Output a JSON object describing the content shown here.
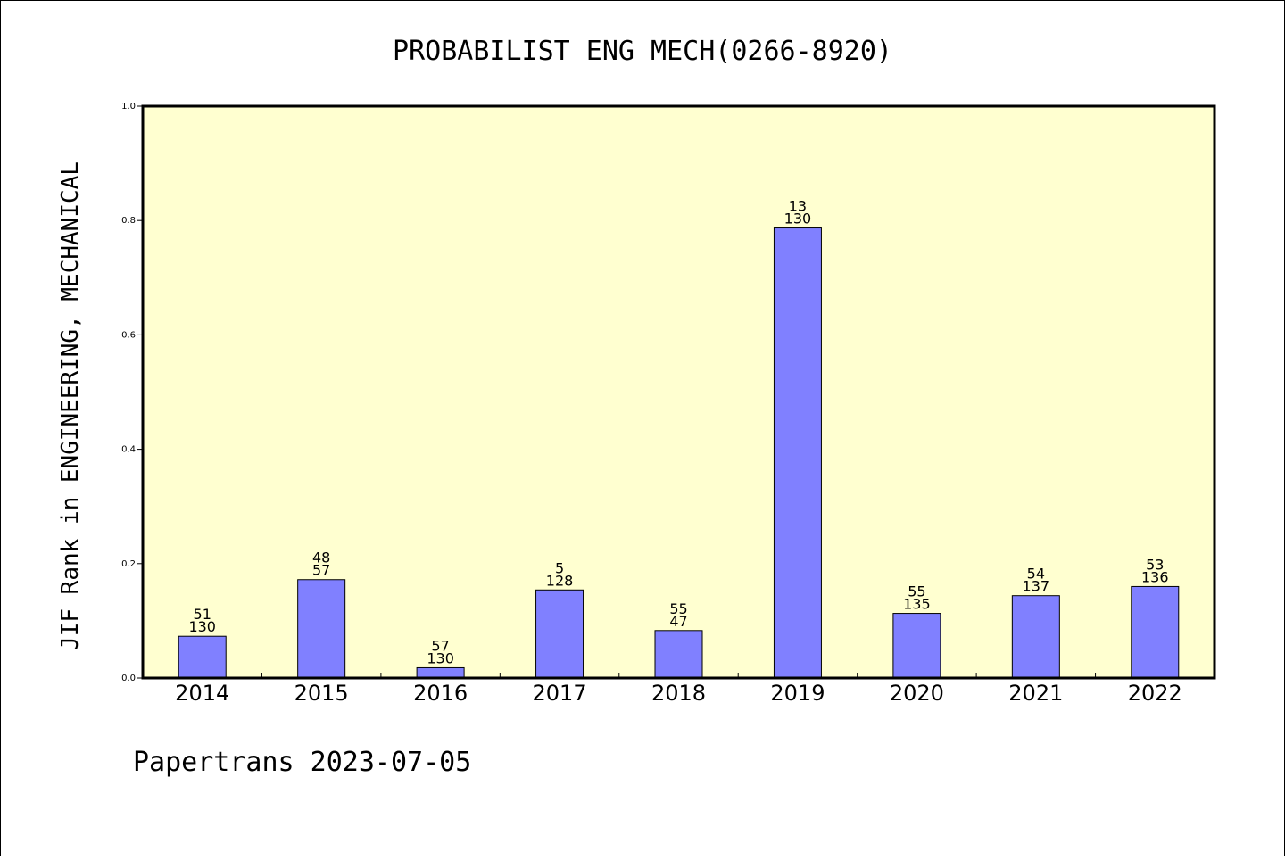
{
  "chart_data": {
    "type": "bar",
    "title": "PROBABILIST ENG MECH(0266-8920)",
    "xlabel": "",
    "ylabel": "JIF Rank in ENGINEERING, MECHANICAL",
    "ylim": [
      0.0,
      1.0
    ],
    "yticks": [
      "0.0",
      "0.2",
      "0.4",
      "0.6",
      "0.8",
      "1.0"
    ],
    "categories": [
      "2014",
      "2015",
      "2016",
      "2017",
      "2018",
      "2019",
      "2020",
      "2021",
      "2022"
    ],
    "values": [
      0.073,
      0.172,
      0.018,
      0.154,
      0.083,
      0.787,
      0.113,
      0.144,
      0.16
    ],
    "rank_labels": [
      {
        "top": "51",
        "bottom": "130"
      },
      {
        "top": "48",
        "bottom": "57"
      },
      {
        "top": "57",
        "bottom": "130"
      },
      {
        "top": "5",
        "bottom": "128"
      },
      {
        "top": "55",
        "bottom": "47"
      },
      {
        "top": "13",
        "bottom": "130"
      },
      {
        "top": "55",
        "bottom": "135"
      },
      {
        "top": "54",
        "bottom": "137"
      },
      {
        "top": "53",
        "bottom": "136"
      }
    ],
    "grid": false,
    "colors": {
      "plot_background": "#ffffd0",
      "bar_fill": "#8080ff",
      "bar_stroke": "#000000"
    }
  },
  "footer": "Papertrans 2023-07-05"
}
